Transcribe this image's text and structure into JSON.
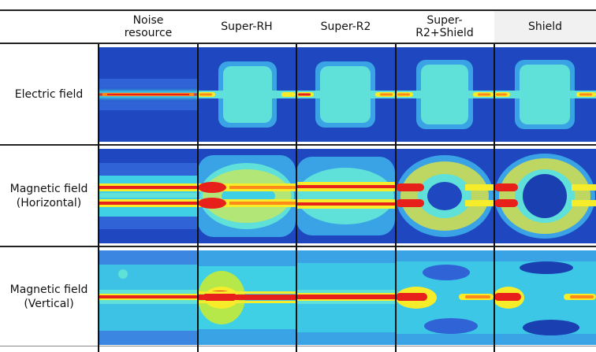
{
  "columns": [
    {
      "label": "Noise\nresource"
    },
    {
      "label": "Super-RH"
    },
    {
      "label": "Super-R2"
    },
    {
      "label": "Super-\nR2+Shield"
    },
    {
      "label": "Shield"
    }
  ],
  "rows": [
    {
      "label": "Electric field"
    },
    {
      "label": "Magnetic field\n(Horizontal)"
    },
    {
      "label": "Magnetic field\n(Vertical)"
    }
  ],
  "colors": {
    "deep_blue": "#1a3fb0",
    "blue": "#2f63d6",
    "cyan": "#3fd0e6",
    "light_cyan": "#5fe0d8",
    "yellow": "#f6ec2a",
    "orange": "#ff8a1a",
    "red": "#e8201c"
  }
}
